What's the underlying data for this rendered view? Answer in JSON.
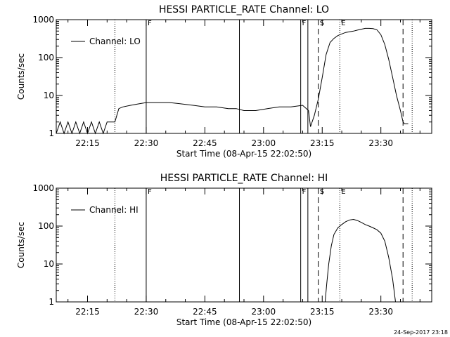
{
  "footer": {
    "timestamp": "24-Sep-2017 23:18"
  },
  "chart_data": [
    {
      "type": "line",
      "title": "HESSI PARTICLE_RATE Channel: LO",
      "xlabel": "Start Time (08-Apr-15 22:02:50)",
      "ylabel": "Counts/sec",
      "y_scale": "log",
      "ylim": [
        1,
        1000
      ],
      "xlim": [
        "22:07:00",
        "23:43:00"
      ],
      "x_ticks": [
        "22:15",
        "22:30",
        "22:45",
        "23:00",
        "23:15",
        "23:30"
      ],
      "y_ticks": [
        "1",
        "10",
        "100",
        "1000"
      ],
      "legend": {
        "entries": [
          "Channel: LO"
        ],
        "placement": "top-left"
      },
      "flags": [
        {
          "label": "F",
          "x": "22:30:00"
        },
        {
          "label": "F",
          "x": "23:09:30"
        },
        {
          "label": "S",
          "x": "23:14:00"
        },
        {
          "label": "E",
          "x": "23:19:30"
        }
      ],
      "markers": [
        {
          "x": "22:22:00",
          "style": "dotted"
        },
        {
          "x": "22:30:00",
          "style": "solid"
        },
        {
          "x": "22:53:50",
          "style": "solid"
        },
        {
          "x": "23:09:30",
          "style": "solid"
        },
        {
          "x": "23:11:20",
          "style": "solid"
        },
        {
          "x": "23:14:00",
          "style": "dashed"
        },
        {
          "x": "23:19:30",
          "style": "dotted"
        },
        {
          "x": "23:35:40",
          "style": "dashed"
        },
        {
          "x": "23:38:00",
          "style": "dotted"
        }
      ],
      "series": [
        {
          "name": "Channel: LO",
          "x": [
            "22:07:00",
            "22:08:00",
            "22:09:00",
            "22:10:00",
            "22:11:00",
            "22:12:00",
            "22:13:00",
            "22:14:00",
            "22:15:00",
            "22:16:00",
            "22:17:00",
            "22:18:00",
            "22:19:00",
            "22:20:00",
            "22:21:00",
            "22:22:00",
            "22:22:30",
            "22:23:00",
            "22:24:00",
            "22:26:00",
            "22:28:00",
            "22:30:00",
            "22:33:00",
            "22:36:00",
            "22:39:00",
            "22:42:00",
            "22:45:00",
            "22:48:00",
            "22:51:00",
            "22:53:00",
            "22:55:00",
            "22:58:00",
            "23:01:00",
            "23:04:00",
            "23:07:00",
            "23:10:00",
            "23:11:30",
            "23:12:00",
            "23:13:00",
            "23:14:00",
            "23:15:00",
            "23:16:00",
            "23:17:00",
            "23:18:00",
            "23:19:00",
            "23:20:00",
            "23:21:00",
            "23:22:00",
            "23:23:00",
            "23:24:00",
            "23:25:00",
            "23:26:00",
            "23:27:00",
            "23:28:00",
            "23:29:00",
            "23:30:00",
            "23:31:00",
            "23:32:00",
            "23:33:00",
            "23:34:00",
            "23:35:00",
            "23:35:40",
            "23:36:00",
            "23:37:00"
          ],
          "y": [
            1,
            2,
            1,
            2,
            1,
            2,
            1,
            2,
            1,
            2,
            1,
            2,
            1,
            2,
            2,
            2,
            3,
            4.5,
            5,
            5.5,
            6,
            6.5,
            6.5,
            6.5,
            6,
            5.5,
            5,
            5,
            4.5,
            4.5,
            4,
            4,
            4.5,
            5,
            5,
            5.5,
            4,
            1.5,
            3,
            8,
            30,
            120,
            250,
            320,
            380,
            420,
            460,
            480,
            500,
            530,
            560,
            590,
            590,
            580,
            540,
            400,
            220,
            90,
            30,
            10,
            4,
            2,
            1.8,
            1.8
          ]
        }
      ]
    },
    {
      "type": "line",
      "title": "HESSI PARTICLE_RATE Channel: HI",
      "xlabel": "Start Time (08-Apr-15 22:02:50)",
      "ylabel": "Counts/sec",
      "y_scale": "log",
      "ylim": [
        1,
        1000
      ],
      "xlim": [
        "22:07:00",
        "23:43:00"
      ],
      "x_ticks": [
        "22:15",
        "22:30",
        "22:45",
        "23:00",
        "23:15",
        "23:30"
      ],
      "y_ticks": [
        "1",
        "10",
        "100",
        "1000"
      ],
      "legend": {
        "entries": [
          "Channel: HI"
        ],
        "placement": "top-left"
      },
      "flags": [
        {
          "label": "F",
          "x": "22:30:00"
        },
        {
          "label": "F",
          "x": "23:09:30"
        },
        {
          "label": "S",
          "x": "23:14:00"
        },
        {
          "label": "E",
          "x": "23:19:30"
        }
      ],
      "markers": [
        {
          "x": "22:22:00",
          "style": "dotted"
        },
        {
          "x": "22:30:00",
          "style": "solid"
        },
        {
          "x": "22:53:50",
          "style": "solid"
        },
        {
          "x": "23:09:30",
          "style": "solid"
        },
        {
          "x": "23:11:20",
          "style": "solid"
        },
        {
          "x": "23:14:00",
          "style": "dashed"
        },
        {
          "x": "23:19:30",
          "style": "dotted"
        },
        {
          "x": "23:35:40",
          "style": "dashed"
        },
        {
          "x": "23:38:00",
          "style": "dotted"
        }
      ],
      "series": [
        {
          "name": "Channel: HI",
          "x": [
            "23:15:45",
            "23:16:10",
            "23:16:40",
            "23:17:20",
            "23:18:00",
            "23:19:00",
            "23:20:00",
            "23:21:00",
            "23:22:00",
            "23:23:00",
            "23:24:00",
            "23:25:00",
            "23:26:00",
            "23:27:00",
            "23:28:00",
            "23:29:00",
            "23:30:00",
            "23:31:00",
            "23:32:00",
            "23:33:00",
            "23:33:45"
          ],
          "y": [
            1,
            3,
            10,
            30,
            60,
            90,
            110,
            130,
            145,
            150,
            140,
            125,
            110,
            100,
            90,
            80,
            65,
            40,
            15,
            4,
            1
          ]
        }
      ]
    }
  ]
}
